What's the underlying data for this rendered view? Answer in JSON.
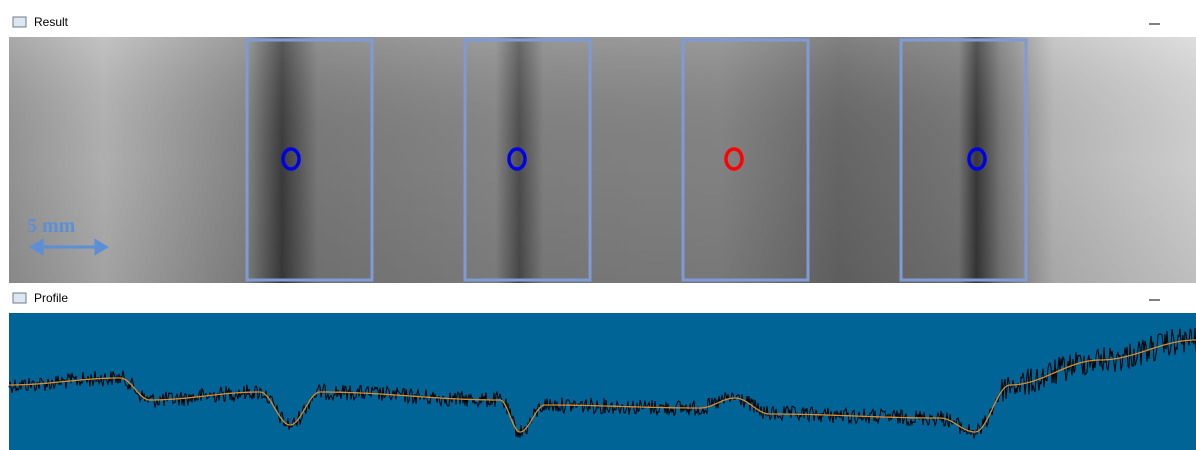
{
  "windows": [
    {
      "title": "Result",
      "scale_label": "5 mm"
    },
    {
      "title": "Profile"
    }
  ]
}
